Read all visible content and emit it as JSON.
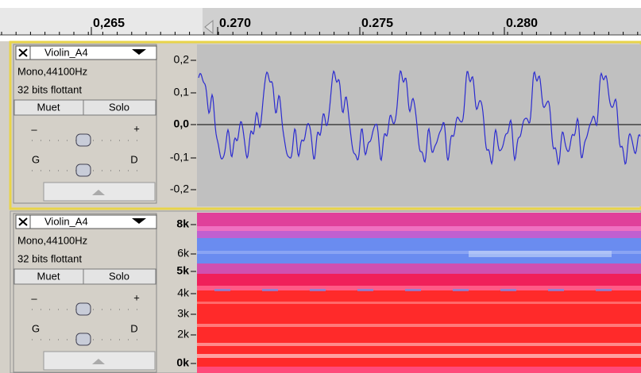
{
  "ruler": {
    "labels": [
      "0,265",
      "0.270",
      "0.275",
      "0.280"
    ]
  },
  "tracks": [
    {
      "name": "Violin_A4",
      "format": "Mono,44100Hz",
      "bits": "32 bits flottant",
      "mute": "Muet",
      "solo": "Solo",
      "gain_minus": "–",
      "gain_plus": "+",
      "pan_left": "G",
      "pan_right": "D",
      "axis_labels": [
        "0,2",
        "0,1",
        "0,0",
        "-0,1",
        "-0,2"
      ]
    },
    {
      "name": "Violin_A4",
      "format": "Mono,44100Hz",
      "bits": "32 bits flottant",
      "mute": "Muet",
      "solo": "Solo",
      "gain_minus": "–",
      "gain_plus": "+",
      "pan_left": "G",
      "pan_right": "D",
      "axis_labels": [
        "8k",
        "6k",
        "5k",
        "4k",
        "3k",
        "2k",
        "0k"
      ]
    }
  ]
}
